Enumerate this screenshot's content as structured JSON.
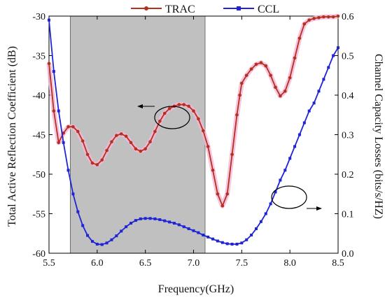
{
  "chart_data": {
    "type": "line",
    "xlabel": "Frequency(GHz)",
    "ylabel_left": "Total Active Reflection Coefficient (dB)",
    "ylabel_right": "Channel Capacity Losses (bits/s/HZ)",
    "xlim": [
      5.5,
      8.5
    ],
    "ylim_left": [
      -60,
      -30
    ],
    "ylim_right": [
      0.0,
      0.6
    ],
    "xticks": [
      "5.5",
      "6.0",
      "6.5",
      "7.0",
      "7.5",
      "8.0",
      "8.5"
    ],
    "yticks_left": [
      "-60",
      "-55",
      "-50",
      "-45",
      "-40",
      "-35",
      "-30"
    ],
    "yticks_right": [
      "0.0",
      "0.1",
      "0.2",
      "0.3",
      "0.4",
      "0.5",
      "0.6"
    ],
    "legend_position": "top",
    "grid": false,
    "shaded_band": [
      5.72,
      7.12
    ],
    "shade_color": "#c0c0c0",
    "series": [
      {
        "name": "TRAC",
        "axis": "left",
        "color": "#b5301e",
        "marker": "circle",
        "x": [
          5.5,
          5.55,
          5.6,
          5.65,
          5.7,
          5.75,
          5.8,
          5.85,
          5.9,
          5.95,
          6.0,
          6.05,
          6.1,
          6.15,
          6.2,
          6.25,
          6.3,
          6.35,
          6.4,
          6.45,
          6.5,
          6.55,
          6.6,
          6.65,
          6.7,
          6.75,
          6.8,
          6.85,
          6.9,
          6.95,
          7.0,
          7.05,
          7.1,
          7.15,
          7.2,
          7.25,
          7.3,
          7.35,
          7.4,
          7.45,
          7.48,
          7.5,
          7.55,
          7.6,
          7.65,
          7.7,
          7.75,
          7.8,
          7.85,
          7.9,
          7.95,
          8.0,
          8.05,
          8.1,
          8.15,
          8.2,
          8.25,
          8.3,
          8.35,
          8.4,
          8.45,
          8.5
        ],
        "y": [
          -36.0,
          -42.0,
          -46.0,
          -44.8,
          -44.0,
          -44.0,
          -44.6,
          -45.8,
          -47.5,
          -48.6,
          -48.8,
          -48.2,
          -47.0,
          -45.9,
          -45.1,
          -44.9,
          -45.2,
          -46.0,
          -46.8,
          -47.1,
          -46.8,
          -45.9,
          -44.6,
          -43.3,
          -42.3,
          -41.7,
          -41.4,
          -41.2,
          -41.2,
          -41.4,
          -42.0,
          -43.0,
          -44.5,
          -46.5,
          -49.5,
          -52.5,
          -54.0,
          -52.5,
          -47.5,
          -42.5,
          -40.0,
          -38.5,
          -37.5,
          -36.7,
          -36.1,
          -35.9,
          -36.3,
          -37.5,
          -39.0,
          -40.1,
          -39.5,
          -37.8,
          -35.3,
          -32.8,
          -31.0,
          -30.5,
          -30.3,
          -30.2,
          -30.1,
          -30.1,
          -30.1,
          -30.0
        ],
        "y_note": ""
      },
      {
        "name": "CCL",
        "axis": "right",
        "color": "#1f24d6",
        "marker": "square",
        "x": [
          5.5,
          5.55,
          5.6,
          5.65,
          5.7,
          5.75,
          5.8,
          5.85,
          5.9,
          5.95,
          6.0,
          6.05,
          6.1,
          6.15,
          6.2,
          6.25,
          6.3,
          6.35,
          6.4,
          6.45,
          6.5,
          6.55,
          6.6,
          6.65,
          6.7,
          6.75,
          6.8,
          6.85,
          6.9,
          6.95,
          7.0,
          7.05,
          7.1,
          7.15,
          7.2,
          7.25,
          7.3,
          7.35,
          7.4,
          7.45,
          7.5,
          7.55,
          7.6,
          7.65,
          7.7,
          7.75,
          7.8,
          7.85,
          7.9,
          7.95,
          8.0,
          8.05,
          8.1,
          8.15,
          8.2,
          8.25,
          8.3,
          8.35,
          8.4,
          8.45,
          8.5
        ],
        "y": [
          0.59,
          0.46,
          0.36,
          0.28,
          0.21,
          0.15,
          0.105,
          0.07,
          0.045,
          0.03,
          0.023,
          0.022,
          0.026,
          0.034,
          0.044,
          0.056,
          0.067,
          0.076,
          0.083,
          0.087,
          0.088,
          0.088,
          0.087,
          0.085,
          0.082,
          0.079,
          0.076,
          0.072,
          0.067,
          0.062,
          0.057,
          0.052,
          0.046,
          0.041,
          0.036,
          0.031,
          0.027,
          0.024,
          0.023,
          0.023,
          0.026,
          0.034,
          0.046,
          0.062,
          0.08,
          0.1,
          0.125,
          0.155,
          0.185,
          0.21,
          0.24,
          0.27,
          0.3,
          0.33,
          0.36,
          0.38,
          0.41,
          0.44,
          0.47,
          0.5,
          0.52
        ]
      }
    ]
  }
}
